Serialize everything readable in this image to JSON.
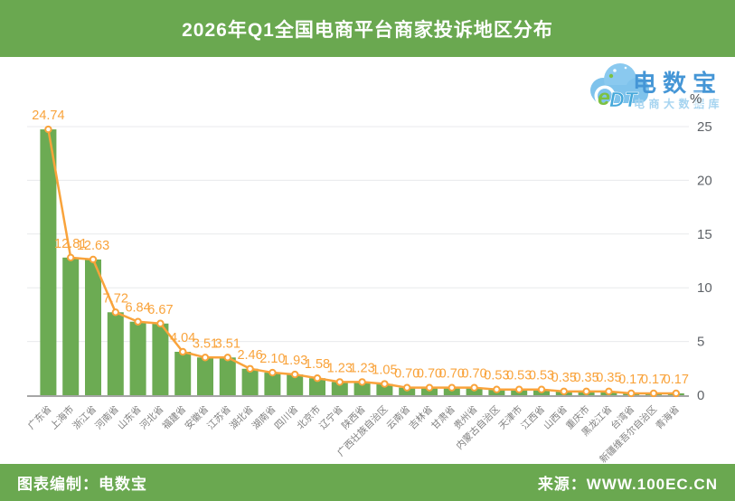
{
  "header": {
    "title": "2026年Q1全国电商平台商家投诉地区分布"
  },
  "logo": {
    "edt_e": "e",
    "edt_dt": "DT",
    "name": "电数宝",
    "subtitle": "电商大数据库",
    "colors": {
      "cloud": "#7fc3ec",
      "cloud_dark": "#5eb1e4",
      "e_green": "#7dc142",
      "dt_blue": "#45a8da",
      "name_blue": "#4596d6",
      "subtitle_blue": "#a6d4f0"
    }
  },
  "chart_data": {
    "type": "bar",
    "overlay": "line",
    "title": "2026年Q1全国电商平台商家投诉地区分布",
    "xlabel": "",
    "ylabel": "%",
    "ylim": [
      0,
      25
    ],
    "yticks": [
      0,
      5,
      10,
      15,
      20,
      25
    ],
    "y_axis_position": "right",
    "grid": true,
    "legend": "none",
    "categories": [
      "广东省",
      "上海市",
      "浙江省",
      "河南省",
      "山东省",
      "河北省",
      "福建省",
      "安徽省",
      "江苏省",
      "湖北省",
      "湖南省",
      "四川省",
      "北京市",
      "辽宁省",
      "陕西省",
      "广西壮族自治区",
      "云南省",
      "吉林省",
      "甘肃省",
      "贵州省",
      "内蒙古自治区",
      "天津市",
      "江西省",
      "山西省",
      "重庆市",
      "黑龙江省",
      "台湾省",
      "新疆维吾尔自治区",
      "青海省"
    ],
    "values": [
      24.74,
      12.81,
      12.63,
      7.72,
      6.84,
      6.67,
      4.04,
      3.51,
      3.51,
      2.46,
      2.1,
      1.93,
      1.58,
      1.23,
      1.23,
      1.05,
      0.7,
      0.7,
      0.7,
      0.7,
      0.53,
      0.53,
      0.53,
      0.35,
      0.35,
      0.35,
      0.17,
      0.17,
      0.17
    ],
    "colors": {
      "bar": "#6cab53",
      "line": "#f9a33b",
      "marker_fill": "#ffffff",
      "data_label": "#f9a33b",
      "gridline": "#e8eaec",
      "axis_line": "#a6a6a6",
      "tick_label": "#5f6368",
      "category_label": "#7f7f7f"
    }
  },
  "footer": {
    "left": "图表编制：电数宝",
    "right": "来源：WWW.100EC.CN"
  }
}
